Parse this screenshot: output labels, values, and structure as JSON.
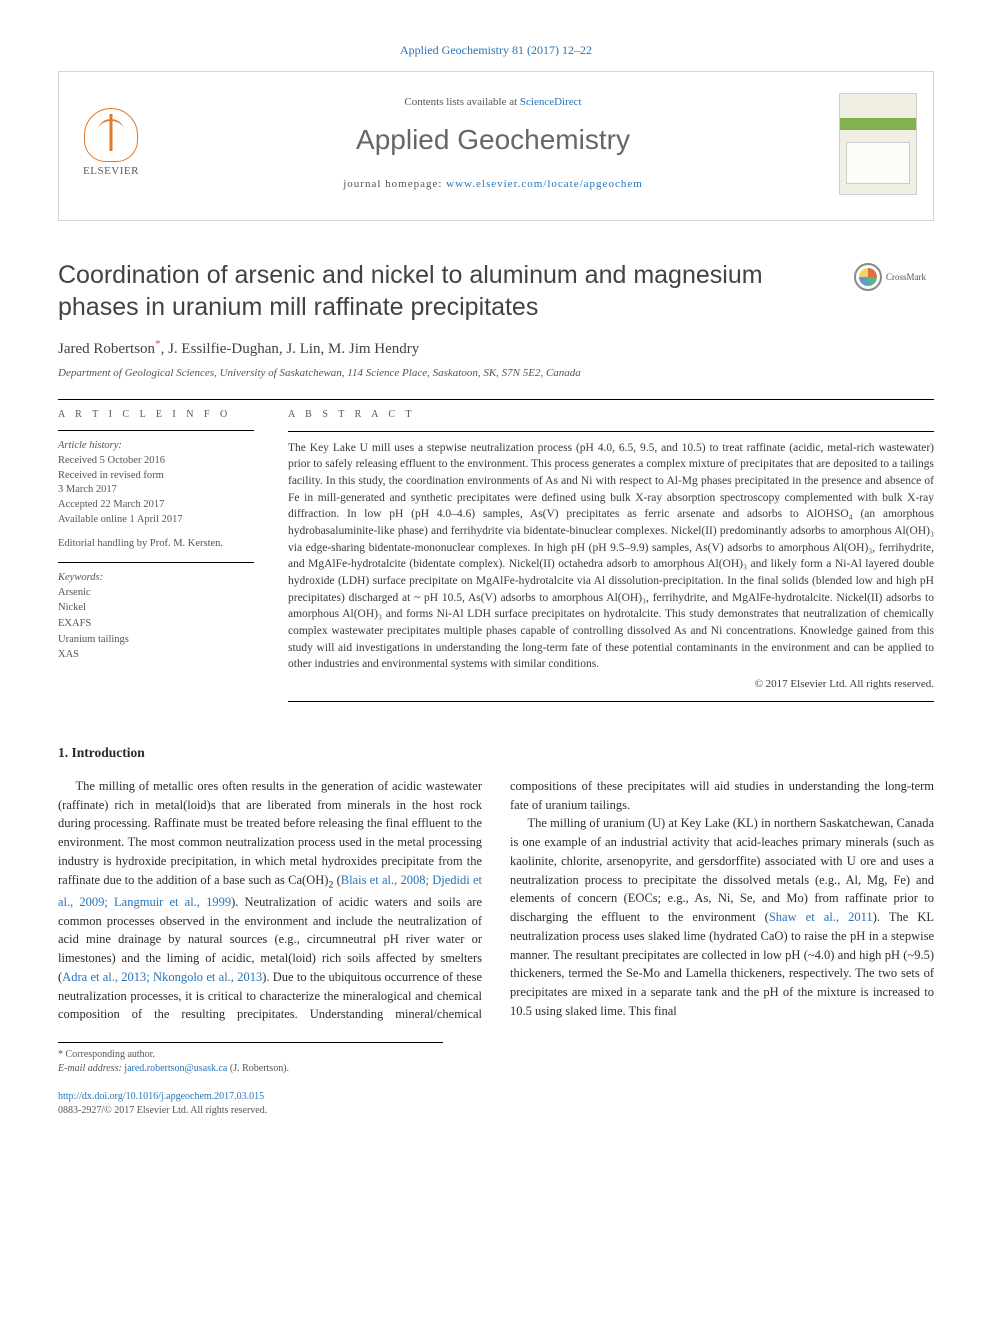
{
  "journal_ref": "Applied Geochemistry 81 (2017) 12–22",
  "header": {
    "contents_prefix": "Contents lists available at ",
    "contents_link": "ScienceDirect",
    "journal_title": "Applied Geochemistry",
    "homepage_prefix": "journal homepage: ",
    "homepage_link": "www.elsevier.com/locate/apgeochem",
    "publisher": "ELSEVIER"
  },
  "crossmark": "CrossMark",
  "title": "Coordination of arsenic and nickel to aluminum and magnesium phases in uranium mill raffinate precipitates",
  "authors": "Jared Robertson*, J. Essilfie-Dughan, J. Lin, M. Jim Hendry",
  "affiliation": "Department of Geological Sciences, University of Saskatchewan, 114 Science Place, Saskatoon, SK, S7N 5E2, Canada",
  "article_info": {
    "heading": "A R T I C L E   I N F O",
    "history_label": "Article history:",
    "received": "Received 5 October 2016",
    "revised1": "Received in revised form",
    "revised2": "3 March 2017",
    "accepted": "Accepted 22 March 2017",
    "online": "Available online 1 April 2017",
    "editor": "Editorial handling by Prof. M. Kersten.",
    "keywords_label": "Keywords:",
    "keywords": [
      "Arsenic",
      "Nickel",
      "EXAFS",
      "Uranium tailings",
      "XAS"
    ]
  },
  "abstract": {
    "heading": "A B S T R A C T",
    "text": "The Key Lake U mill uses a stepwise neutralization process (pH 4.0, 6.5, 9.5, and 10.5) to treat raffinate (acidic, metal-rich wastewater) prior to safely releasing effluent to the environment. This process generates a complex mixture of precipitates that are deposited to a tailings facility. In this study, the coordination environments of As and Ni with respect to Al-Mg phases precipitated in the presence and absence of Fe in mill-generated and synthetic precipitates were defined using bulk X-ray absorption spectroscopy complemented with bulk X-ray diffraction. In low pH (pH 4.0–4.6) samples, As(V) precipitates as ferric arsenate and adsorbs to AlOHSO₄ (an amorphous hydrobasaluminite-like phase) and ferrihydrite via bidentate-binuclear complexes. Nickel(II) predominantly adsorbs to amorphous Al(OH)₃ via edge-sharing bidentate-mononuclear complexes. In high pH (pH 9.5–9.9) samples, As(V) adsorbs to amorphous Al(OH)₃, ferrihydrite, and MgAlFe-hydrotalcite (bidentate complex). Nickel(II) octahedra adsorb to amorphous Al(OH)₃ and likely form a Ni-Al layered double hydroxide (LDH) surface precipitate on MgAlFe-hydrotalcite via Al dissolution-precipitation. In the final solids (blended low and high pH precipitates) discharged at ~ pH 10.5, As(V) adsorbs to amorphous Al(OH)₃, ferrihydrite, and MgAlFe-hydrotalcite. Nickel(II) adsorbs to amorphous Al(OH)₃ and forms Ni-Al LDH surface precipitates on hydrotalcite. This study demonstrates that neutralization of chemically complex wastewater precipitates multiple phases capable of controlling dissolved As and Ni concentrations. Knowledge gained from this study will aid investigations in understanding the long-term fate of these potential contaminants in the environment and can be applied to other industries and environmental systems with similar conditions.",
    "copyright": "© 2017 Elsevier Ltd. All rights reserved."
  },
  "section1": {
    "heading": "1. Introduction",
    "p1a": "The milling of metallic ores often results in the generation of acidic wastewater (raffinate) rich in metal(loid)s that are liberated from minerals in the host rock during processing. Raffinate must be treated before releasing the final effluent to the environment. The most common neutralization process used in the metal processing industry is hydroxide precipitation, in which metal hydroxides precipitate from the raffinate due to the addition of a base such as Ca(OH)",
    "p1_cite1": "Blais et al., 2008; Djedidi et al., 2009; Langmuir et al., 1999",
    "p1b": "). Neutralization of acidic waters and soils are common processes observed in the environment and include the neutralization of acid mine drainage by natural sources (e.g., circumneutral pH river water or limestones) and the liming of acidic, metal(loid) rich soils affected by smelters (",
    "p1_cite2": "Adra et al., 2013; Nkongolo et al., 2013",
    "p1c": "). ",
    "p2a": "Due to the ubiquitous occurrence of these neutralization processes, it is critical to characterize the mineralogical and chemical composition of the resulting precipitates. Understanding mineral/chemical compositions of these precipitates will aid studies in understanding the long-term fate of uranium tailings.",
    "p3a": "The milling of uranium (U) at Key Lake (KL) in northern Saskatchewan, Canada is one example of an industrial activity that acid-leaches primary minerals (such as kaolinite, chlorite, arsenopyrite, and gersdorffite) associated with U ore and uses a neutralization process to precipitate the dissolved metals (e.g., Al, Mg, Fe) and elements of concern (EOCs; e.g., As, Ni, Se, and Mo) from raffinate prior to discharging the effluent to the environment (",
    "p3_cite1": "Shaw et al., 2011",
    "p3b": "). The KL neutralization process uses slaked lime (hydrated CaO) to raise the pH in a stepwise manner. The resultant precipitates are collected in low pH (~4.0) and high pH (~9.5) thickeners, termed the Se-Mo and Lamella thickeners, respectively. The two sets of precipitates are mixed in a separate tank and the pH of the mixture is increased to 10.5 using slaked lime. This final"
  },
  "footnotes": {
    "corr": "* Corresponding author.",
    "email_label": "E-mail address: ",
    "email": "jared.robertson@usask.ca",
    "email_suffix": " (J. Robertson)."
  },
  "bottom": {
    "doi": "http://dx.doi.org/10.1016/j.apgeochem.2017.03.015",
    "issn": "0883-2927/© 2017 Elsevier Ltd. All rights reserved."
  },
  "colors": {
    "link": "#2773b8",
    "accent": "#e07a2a"
  }
}
